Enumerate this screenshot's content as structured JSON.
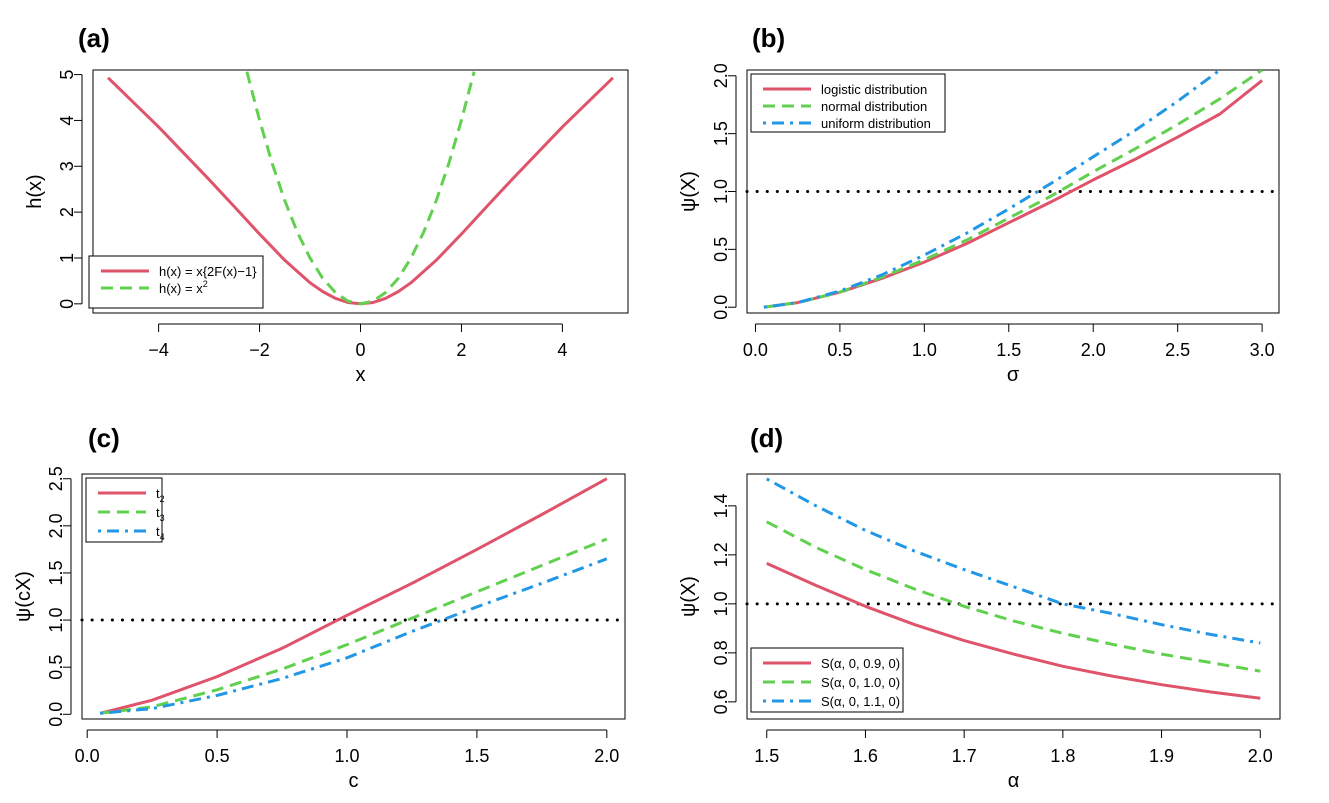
{
  "chart_data": [
    {
      "panel": "(a)",
      "type": "line",
      "xlabel": "x",
      "ylabel": "h(x)",
      "xlim": [
        -5.3,
        5.3
      ],
      "ylim": [
        -0.2,
        5.1
      ],
      "xticks": [
        -4,
        -2,
        0,
        2,
        4
      ],
      "xtick_labels": [
        "−4",
        "−2",
        "0",
        "2",
        "4"
      ],
      "yticks": [
        0,
        1,
        2,
        3,
        4,
        5
      ],
      "ytick_labels": [
        "0",
        "1",
        "2",
        "3",
        "4",
        "5"
      ],
      "legend_position": "bottom-left",
      "series": [
        {
          "name": "h(x) = x{2F(x)−1}",
          "legend_main": "h(x) = x{2F(x)−1}",
          "legend_sup": "",
          "color": "#DF536B",
          "style": "solid",
          "x": [
            -5,
            -4,
            -3,
            -2.5,
            -2,
            -1.5,
            -1,
            -0.75,
            -0.5,
            -0.25,
            0,
            0.25,
            0.5,
            0.75,
            1,
            1.5,
            2,
            2.5,
            3,
            4,
            5
          ],
          "y": [
            4.93,
            3.86,
            2.71,
            2.12,
            1.52,
            0.95,
            0.46,
            0.27,
            0.12,
            0.03,
            0,
            0.03,
            0.12,
            0.27,
            0.46,
            0.95,
            1.52,
            2.12,
            2.71,
            3.86,
            4.93
          ]
        },
        {
          "name": "h(x) = x^2",
          "legend_main": "h(x) = x",
          "legend_sup": "2",
          "color": "#61D04F",
          "style": "dashed",
          "x": [
            -2.25,
            -2,
            -1.75,
            -1.5,
            -1.25,
            -1,
            -0.75,
            -0.5,
            -0.25,
            0,
            0.25,
            0.5,
            0.75,
            1,
            1.25,
            1.5,
            1.75,
            2,
            2.25
          ],
          "y": [
            5.06,
            4,
            3.06,
            2.25,
            1.56,
            1,
            0.56,
            0.25,
            0.06,
            0,
            0.06,
            0.25,
            0.56,
            1,
            1.56,
            2.25,
            3.06,
            4,
            5.06
          ]
        }
      ]
    },
    {
      "panel": "(b)",
      "type": "line",
      "xlabel": "σ",
      "ylabel": "ψ(X)",
      "xlim": [
        -0.05,
        3.1
      ],
      "ylim": [
        -0.05,
        2.05
      ],
      "xticks": [
        0,
        0.5,
        1,
        1.5,
        2,
        2.5,
        3
      ],
      "xtick_labels": [
        "0.0",
        "0.5",
        "1.0",
        "1.5",
        "2.0",
        "2.5",
        "3.0"
      ],
      "yticks": [
        0,
        0.5,
        1,
        1.5,
        2
      ],
      "ytick_labels": [
        "0.0",
        "0.5",
        "1.0",
        "1.5",
        "2.0"
      ],
      "hline": 1.0,
      "legend_position": "top-left",
      "series": [
        {
          "name": "logistic distribution",
          "legend_main": "logistic distribution",
          "legend_sup": "",
          "color": "#DF536B",
          "style": "solid",
          "x": [
            0.05,
            0.25,
            0.5,
            0.75,
            1,
            1.25,
            1.5,
            1.75,
            2,
            2.25,
            2.5,
            2.75,
            3
          ],
          "y": [
            0,
            0.04,
            0.13,
            0.25,
            0.39,
            0.55,
            0.73,
            0.91,
            1.1,
            1.28,
            1.47,
            1.67,
            1.96
          ]
        },
        {
          "name": "normal distribution",
          "legend_main": "normal distribution",
          "legend_sup": "",
          "color": "#61D04F",
          "style": "dashed",
          "x": [
            0.05,
            0.25,
            0.5,
            0.75,
            1,
            1.25,
            1.5,
            1.75,
            2,
            2.25,
            2.5,
            2.75,
            3
          ],
          "y": [
            0,
            0.04,
            0.13,
            0.26,
            0.41,
            0.58,
            0.77,
            0.96,
            1.17,
            1.37,
            1.58,
            1.8,
            2.05
          ]
        },
        {
          "name": "uniform distribution",
          "legend_main": "uniform distribution",
          "legend_sup": "",
          "color": "#2297E6",
          "style": "dashdot",
          "x": [
            0.05,
            0.25,
            0.5,
            0.75,
            1,
            1.25,
            1.5,
            1.75,
            2,
            2.25,
            2.5,
            2.75
          ],
          "y": [
            0,
            0.04,
            0.14,
            0.28,
            0.45,
            0.64,
            0.85,
            1.07,
            1.3,
            1.53,
            1.78,
            2.05
          ]
        }
      ]
    },
    {
      "panel": "(c)",
      "type": "line",
      "xlabel": "c",
      "ylabel": "ψ(cX)",
      "xlim": [
        -0.02,
        2.07
      ],
      "ylim": [
        -0.05,
        2.55
      ],
      "xticks": [
        0,
        0.5,
        1,
        1.5,
        2
      ],
      "xtick_labels": [
        "0.0",
        "0.5",
        "1.0",
        "1.5",
        "2.0"
      ],
      "yticks": [
        0,
        0.5,
        1,
        1.5,
        2,
        2.5
      ],
      "ytick_labels": [
        "0.0",
        "0.5",
        "1.0",
        "1.5",
        "2.0",
        "2.5"
      ],
      "hline": 1.0,
      "legend_position": "top-left",
      "series": [
        {
          "name": "t2",
          "legend_main": "t",
          "legend_sub": "2",
          "color": "#DF536B",
          "style": "solid",
          "x": [
            0.05,
            0.25,
            0.5,
            0.75,
            1,
            1.25,
            1.5,
            1.75,
            2
          ],
          "y": [
            0.01,
            0.15,
            0.4,
            0.7,
            1.05,
            1.39,
            1.75,
            2.12,
            2.5
          ]
        },
        {
          "name": "t3",
          "legend_main": "t",
          "legend_sub": "3",
          "color": "#61D04F",
          "style": "dashed",
          "x": [
            0.05,
            0.25,
            0.5,
            0.75,
            1,
            1.25,
            1.5,
            1.75,
            2
          ],
          "y": [
            0.01,
            0.08,
            0.26,
            0.48,
            0.74,
            1.02,
            1.3,
            1.58,
            1.86
          ]
        },
        {
          "name": "t4",
          "legend_main": "t",
          "legend_sub": "4",
          "color": "#2297E6",
          "style": "dashdot",
          "x": [
            0.05,
            0.25,
            0.5,
            0.75,
            1,
            1.25,
            1.5,
            1.75,
            2
          ],
          "y": [
            0.01,
            0.06,
            0.2,
            0.38,
            0.6,
            0.88,
            1.14,
            1.39,
            1.65
          ]
        }
      ]
    },
    {
      "panel": "(d)",
      "type": "line",
      "xlabel": "α",
      "ylabel": "ψ(X)",
      "xlim": [
        1.48,
        2.02
      ],
      "ylim": [
        0.53,
        1.53
      ],
      "xticks": [
        1.5,
        1.6,
        1.7,
        1.8,
        1.9,
        2.0
      ],
      "xtick_labels": [
        "1.5",
        "1.6",
        "1.7",
        "1.8",
        "1.9",
        "2.0"
      ],
      "yticks": [
        0.6,
        0.8,
        1.0,
        1.2,
        1.4
      ],
      "ytick_labels": [
        "0.6",
        "0.8",
        "1.0",
        "1.2",
        "1.4"
      ],
      "hline": 1.0,
      "legend_position": "bottom-left",
      "series": [
        {
          "name": "S(α, 0, 0.9, 0)",
          "legend_main": "S(α, 0, 0.9, 0)",
          "legend_sup": "",
          "color": "#DF536B",
          "style": "solid",
          "x": [
            1.5,
            1.55,
            1.6,
            1.65,
            1.7,
            1.75,
            1.8,
            1.85,
            1.9,
            1.95,
            2.0
          ],
          "y": [
            1.165,
            1.075,
            0.99,
            0.915,
            0.85,
            0.795,
            0.745,
            0.705,
            0.67,
            0.64,
            0.615
          ]
        },
        {
          "name": "S(α, 0, 1.0, 0)",
          "legend_main": "S(α, 0, 1.0, 0)",
          "legend_sup": "",
          "color": "#61D04F",
          "style": "dashed",
          "x": [
            1.5,
            1.55,
            1.6,
            1.65,
            1.7,
            1.75,
            1.8,
            1.85,
            1.9,
            1.95,
            2.0
          ],
          "y": [
            1.335,
            1.23,
            1.14,
            1.06,
            0.99,
            0.93,
            0.88,
            0.835,
            0.795,
            0.76,
            0.725
          ]
        },
        {
          "name": "S(α, 0, 1.1, 0)",
          "legend_main": "S(α, 0, 1.1, 0)",
          "legend_sup": "",
          "color": "#2297E6",
          "style": "dashdot",
          "x": [
            1.5,
            1.55,
            1.6,
            1.65,
            1.7,
            1.75,
            1.8,
            1.85,
            1.9,
            1.95,
            2.0
          ],
          "y": [
            1.51,
            1.4,
            1.3,
            1.215,
            1.14,
            1.07,
            1.0,
            0.96,
            0.915,
            0.875,
            0.84
          ]
        }
      ]
    }
  ]
}
